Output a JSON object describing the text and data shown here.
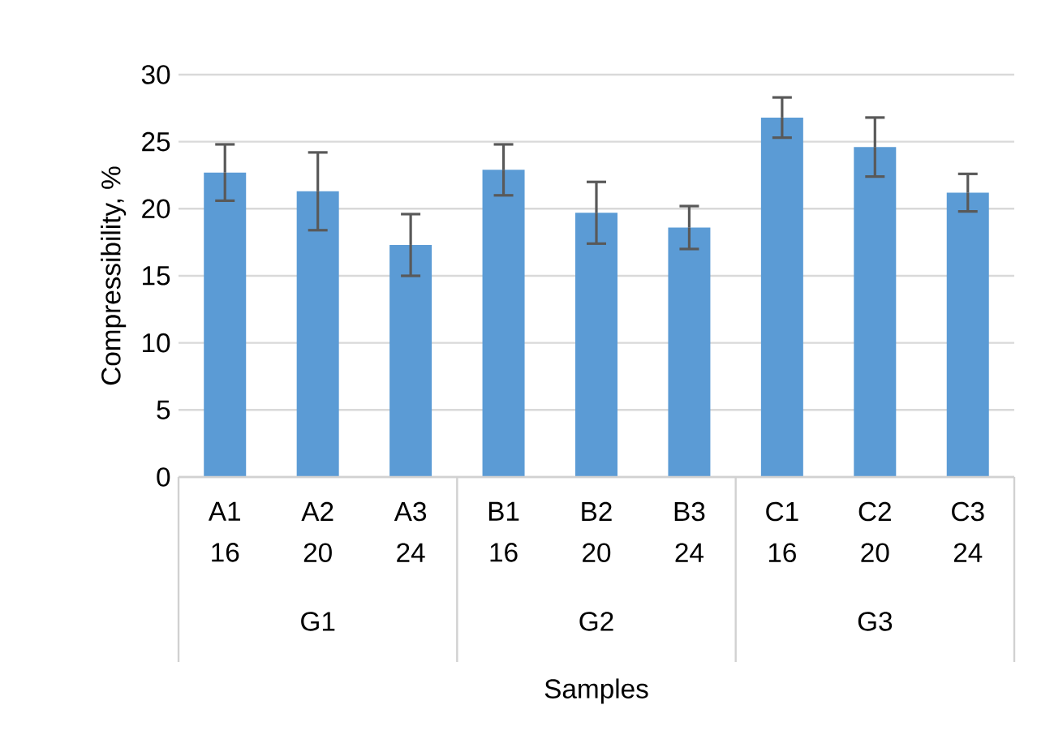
{
  "chart_data": {
    "type": "bar",
    "xlabel": "Samples",
    "ylabel": "Compressibility, %",
    "categories": [
      "A1 16",
      "A2 20",
      "A3 24",
      "B1 16",
      "B2 20",
      "B3 24",
      "C1 16",
      "C2 20",
      "C3 24"
    ],
    "values": [
      22.7,
      21.3,
      17.3,
      22.9,
      19.7,
      18.6,
      26.8,
      24.6,
      21.2
    ],
    "errors": [
      2.1,
      2.9,
      2.3,
      1.9,
      2.3,
      1.6,
      1.5,
      2.2,
      1.4
    ],
    "color": "#5b9bd5",
    "ylim": [
      0,
      30
    ],
    "yticks": [
      0,
      5,
      10,
      15,
      20,
      25,
      30
    ],
    "grid": "y",
    "annotations": [
      "G1",
      "G2",
      "G3"
    ]
  }
}
